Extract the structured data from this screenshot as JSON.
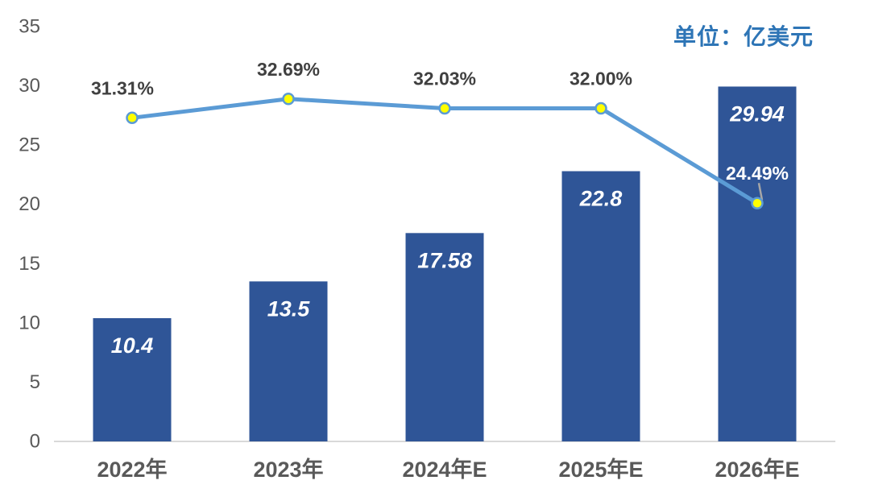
{
  "chart_data": {
    "type": "bar+line",
    "unit_label": "单位：亿美元",
    "categories": [
      "2022年",
      "2023年",
      "2024年E",
      "2025年E",
      "2026年E"
    ],
    "bar_series": {
      "values": [
        10.4,
        13.5,
        17.58,
        22.8,
        29.94
      ],
      "labels": [
        "10.4",
        "13.5",
        "17.58",
        "22.8",
        "29.94"
      ]
    },
    "line_series": {
      "values_pct": [
        31.31,
        32.69,
        32.03,
        32.0,
        24.49
      ],
      "labels": [
        "31.31%",
        "32.69%",
        "32.03%",
        "32.00%",
        "24.49%"
      ],
      "plotted_left_axis_values": [
        27.3,
        28.9,
        28.1,
        28.1,
        20.1
      ],
      "label_colors": [
        "#404040",
        "#404040",
        "#404040",
        "#404040",
        "#FFFFFF"
      ],
      "leader_line_point_index": 4
    },
    "ylim": [
      0,
      35
    ],
    "yticks": [
      "0",
      "5",
      "10",
      "15",
      "20",
      "25",
      "30",
      "35"
    ],
    "grid": false,
    "legend": "none",
    "colors": {
      "background": "#FFFFFF",
      "bar": "#2F5597",
      "bar_value_label": "#FFFFFF",
      "line": "#5B9BD5",
      "marker_fill": "#FFFF00",
      "marker_stroke": "#5B9BD5",
      "axis_line": "#D9D9D9",
      "tick_label": "#595959",
      "category_label": "#595959",
      "percent_label": "#404040",
      "unit_label": "#2E75B6",
      "leader_line": "#A6A6A6"
    }
  }
}
